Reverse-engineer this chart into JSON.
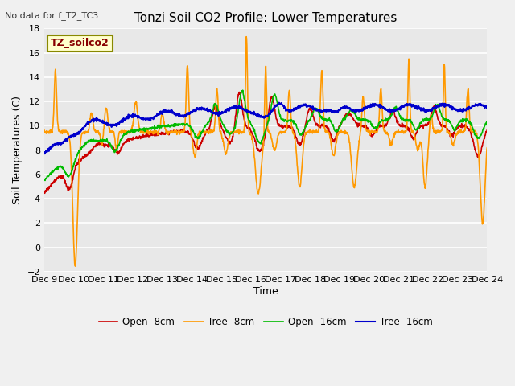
{
  "title": "Tonzi Soil CO2 Profile: Lower Temperatures",
  "subtitle": "No data for f_T2_TC3",
  "ylabel": "Soil Temperatures (C)",
  "xlabel": "Time",
  "legend_label": "TZ_soilco2",
  "ylim": [
    -2,
    18
  ],
  "yticks": [
    -2,
    0,
    2,
    4,
    6,
    8,
    10,
    12,
    14,
    16,
    18
  ],
  "xtick_labels": [
    "Dec 9",
    "Dec 10",
    "Dec 11",
    "Dec 12",
    "Dec 13",
    "Dec 14",
    "Dec 15",
    "Dec 16",
    "Dec 17",
    "Dec 18",
    "Dec 19",
    "Dec 20",
    "Dec 21",
    "Dec 22",
    "Dec 23",
    "Dec 24"
  ],
  "bg_color": "#e8e8e8",
  "fig_bg_color": "#f0f0f0",
  "series": {
    "open8": {
      "color": "#cc0000",
      "label": "Open -8cm",
      "lw": 1.2
    },
    "tree8": {
      "color": "#ff9900",
      "label": "Tree -8cm",
      "lw": 1.2
    },
    "open16": {
      "color": "#00bb00",
      "label": "Open -16cm",
      "lw": 1.2
    },
    "tree16": {
      "color": "#0000cc",
      "label": "Tree -16cm",
      "lw": 1.5
    }
  }
}
